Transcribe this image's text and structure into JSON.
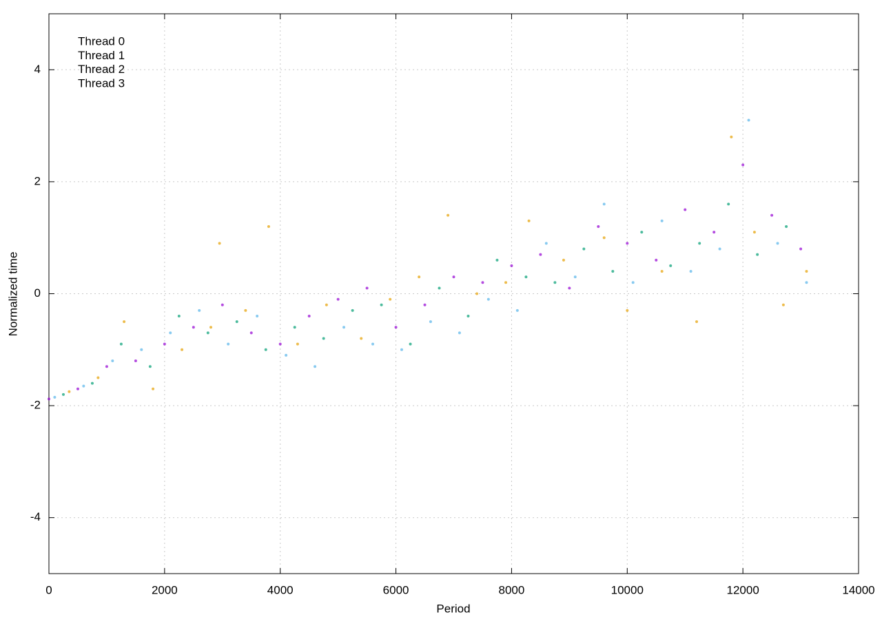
{
  "chart_data": {
    "type": "scatter",
    "xlabel": "Period",
    "ylabel": "Normalized time",
    "xlim": [
      0,
      14000
    ],
    "xticks": [
      0,
      2000,
      4000,
      6000,
      8000,
      10000,
      12000,
      14000
    ],
    "ylim": [
      -5,
      5
    ],
    "yticks": [
      -4,
      -2,
      0,
      2,
      4
    ],
    "grid": true,
    "legend": "top-left",
    "series": [
      {
        "name": "Thread 0",
        "color": "#9400d3",
        "x": [
          0,
          500,
          1000,
          1500,
          2000,
          2500,
          3000,
          3500,
          4000,
          4500,
          5000,
          5500,
          6000,
          6500,
          7000,
          7500,
          8000,
          8500,
          9000,
          9500,
          10000,
          10500,
          11000,
          11500,
          12000,
          12500,
          13000
        ],
        "values": [
          -1.88,
          -1.7,
          -1.3,
          -1.2,
          -0.9,
          -0.6,
          -0.2,
          -0.7,
          -0.9,
          -0.4,
          -0.1,
          0.1,
          -0.6,
          -0.2,
          0.3,
          0.2,
          0.5,
          0.7,
          0.1,
          1.2,
          0.9,
          0.6,
          1.5,
          1.1,
          2.3,
          1.4,
          0.8
        ]
      },
      {
        "name": "Thread 1",
        "color": "#009e73",
        "x": [
          250,
          750,
          1250,
          1750,
          2250,
          2750,
          3250,
          3750,
          4250,
          4750,
          5250,
          5750,
          6250,
          6750,
          7250,
          7750,
          8250,
          8750,
          9250,
          9750,
          10250,
          10750,
          11250,
          11750,
          12250,
          12750
        ],
        "values": [
          -1.8,
          -1.6,
          -0.9,
          -1.3,
          -0.4,
          -0.7,
          -0.5,
          -1.0,
          -0.6,
          -0.8,
          -0.3,
          -0.2,
          -0.9,
          0.1,
          -0.4,
          0.6,
          0.3,
          0.2,
          0.8,
          0.4,
          1.1,
          0.5,
          0.9,
          1.6,
          0.7,
          1.2
        ]
      },
      {
        "name": "Thread 2",
        "color": "#56b4e9",
        "x": [
          100,
          600,
          1100,
          1600,
          2100,
          2600,
          3100,
          3600,
          4100,
          4600,
          5100,
          5600,
          6100,
          6600,
          7100,
          7600,
          8100,
          8600,
          9100,
          9600,
          10100,
          10600,
          11100,
          11600,
          12100,
          12600,
          13100
        ],
        "values": [
          -1.85,
          -1.65,
          -1.2,
          -1.0,
          -0.7,
          -0.3,
          -0.9,
          -0.4,
          -1.1,
          -1.3,
          -0.6,
          -0.9,
          -1.0,
          -0.5,
          -0.7,
          -0.1,
          -0.3,
          0.9,
          0.3,
          1.6,
          0.2,
          1.3,
          0.4,
          0.8,
          3.1,
          0.9,
          0.2
        ]
      },
      {
        "name": "Thread 3",
        "color": "#e69f00",
        "x": [
          350,
          850,
          1300,
          1800,
          2300,
          2800,
          2950,
          3400,
          3800,
          4300,
          4800,
          5400,
          5900,
          6400,
          6900,
          7400,
          7900,
          8300,
          8900,
          9600,
          10000,
          10600,
          11200,
          11800,
          12200,
          12700,
          13100
        ],
        "values": [
          -1.75,
          -1.5,
          -0.5,
          -1.7,
          -1.0,
          -0.6,
          0.9,
          -0.3,
          1.2,
          -0.9,
          -0.2,
          -0.8,
          -0.1,
          0.3,
          1.4,
          0.0,
          0.2,
          1.3,
          0.6,
          1.0,
          -0.3,
          0.4,
          -0.5,
          2.8,
          1.1,
          -0.2,
          0.4
        ]
      }
    ]
  }
}
